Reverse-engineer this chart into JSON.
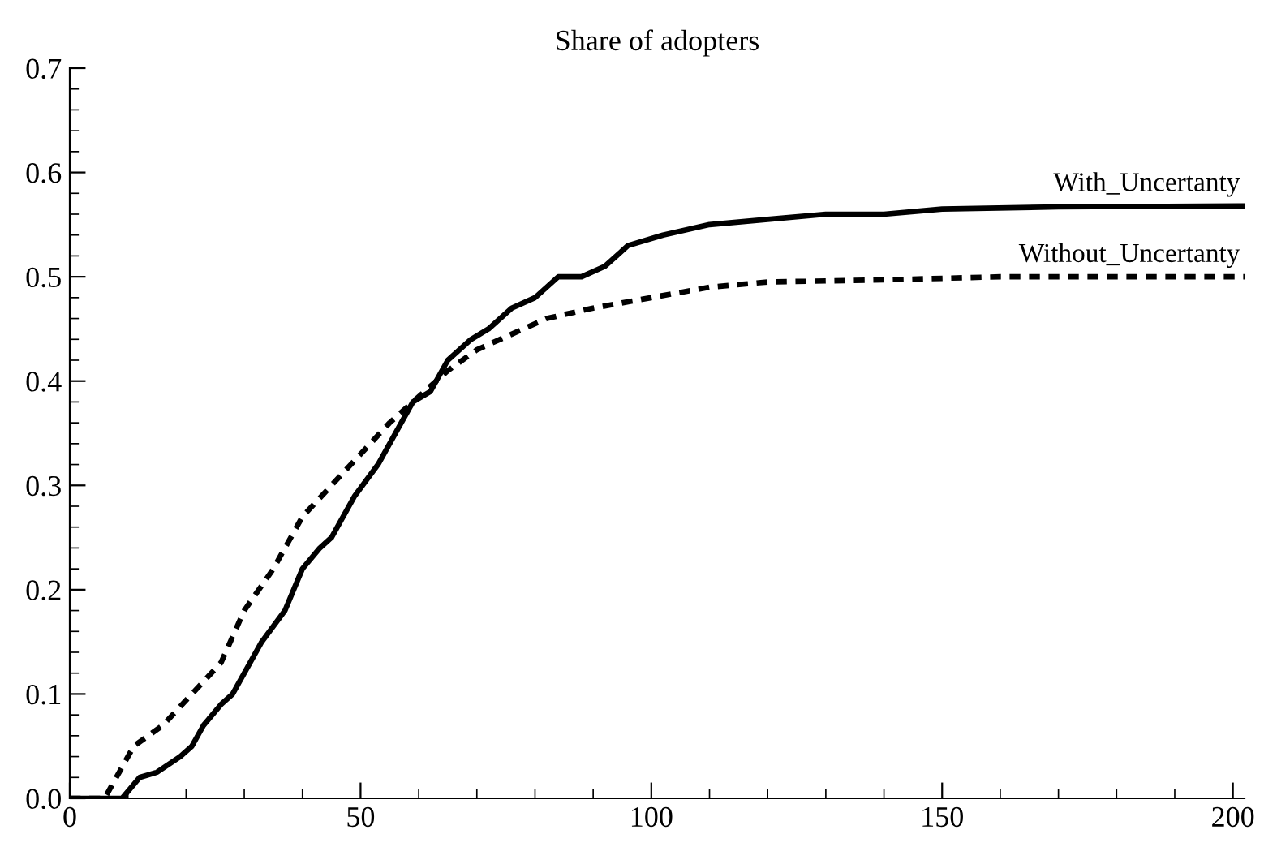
{
  "chart_data": {
    "type": "line",
    "title": "Share of adopters",
    "xlim": [
      0,
      202
    ],
    "ylim": [
      0,
      0.7
    ],
    "xticks": [
      0,
      {
        "value": 10,
        "label": null
      },
      {
        "value": 20,
        "label": null
      },
      {
        "value": 30,
        "label": null
      },
      {
        "value": 40,
        "label": null
      },
      50,
      {
        "value": 60,
        "label": null
      },
      {
        "value": 70,
        "label": null
      },
      {
        "value": 80,
        "label": null
      },
      {
        "value": 90,
        "label": null
      },
      100,
      {
        "value": 110,
        "label": null
      },
      {
        "value": 120,
        "label": null
      },
      {
        "value": 130,
        "label": null
      },
      {
        "value": 140,
        "label": null
      },
      150,
      {
        "value": 160,
        "label": null
      },
      {
        "value": 170,
        "label": null
      },
      {
        "value": 180,
        "label": null
      },
      {
        "value": 190,
        "label": null
      },
      200
    ],
    "yticks": [
      {
        "value": 0,
        "label": "0.0"
      },
      {
        "value": 0.02,
        "label": null
      },
      {
        "value": 0.04,
        "label": null
      },
      {
        "value": 0.06,
        "label": null
      },
      {
        "value": 0.08,
        "label": null
      },
      0.1,
      {
        "value": 0.12,
        "label": null
      },
      {
        "value": 0.14,
        "label": null
      },
      {
        "value": 0.16,
        "label": null
      },
      {
        "value": 0.18,
        "label": null
      },
      0.2,
      {
        "value": 0.22,
        "label": null
      },
      {
        "value": 0.24,
        "label": null
      },
      {
        "value": 0.26,
        "label": null
      },
      {
        "value": 0.28,
        "label": null
      },
      0.3,
      {
        "value": 0.32,
        "label": null
      },
      {
        "value": 0.34,
        "label": null
      },
      {
        "value": 0.36,
        "label": null
      },
      {
        "value": 0.38,
        "label": null
      },
      0.4,
      {
        "value": 0.42,
        "label": null
      },
      {
        "value": 0.44,
        "label": null
      },
      {
        "value": 0.46,
        "label": null
      },
      {
        "value": 0.48,
        "label": null
      },
      0.5,
      {
        "value": 0.52,
        "label": null
      },
      {
        "value": 0.54,
        "label": null
      },
      {
        "value": 0.56,
        "label": null
      },
      {
        "value": 0.58,
        "label": null
      },
      0.6,
      {
        "value": 0.62,
        "label": null
      },
      {
        "value": 0.64,
        "label": null
      },
      {
        "value": 0.66,
        "label": null
      },
      {
        "value": 0.68,
        "label": null
      },
      0.7
    ],
    "grid": false,
    "marker": "none",
    "series": [
      {
        "name": "With_Uncertanty",
        "color": "#000000",
        "line_style": "solid",
        "x": [
          0,
          9,
          12,
          15,
          19,
          21,
          23,
          26,
          28,
          31,
          33,
          37,
          40,
          43,
          45,
          49,
          53,
          57,
          59,
          62,
          65,
          69,
          72,
          76,
          80,
          84,
          88,
          92,
          96,
          102,
          110,
          120,
          130,
          140,
          150,
          170,
          202
        ],
        "values": [
          0,
          0,
          0.02,
          0.025,
          0.04,
          0.05,
          0.07,
          0.09,
          0.1,
          0.13,
          0.15,
          0.18,
          0.22,
          0.24,
          0.25,
          0.29,
          0.32,
          0.36,
          0.38,
          0.39,
          0.42,
          0.44,
          0.45,
          0.47,
          0.48,
          0.5,
          0.5,
          0.51,
          0.53,
          0.54,
          0.55,
          0.555,
          0.56,
          0.56,
          0.565,
          0.567,
          0.568
        ]
      },
      {
        "name": "Without_Uncertanty",
        "color": "#000000",
        "line_style": "dashed",
        "x": [
          0,
          6,
          11,
          16,
          21,
          26,
          30,
          35,
          40,
          45,
          50,
          55,
          59,
          65,
          70,
          76,
          82,
          90,
          100,
          110,
          120,
          140,
          160,
          202
        ],
        "values": [
          0,
          0,
          0.05,
          0.07,
          0.1,
          0.13,
          0.18,
          0.22,
          0.27,
          0.3,
          0.33,
          0.36,
          0.38,
          0.41,
          0.43,
          0.445,
          0.46,
          0.47,
          0.48,
          0.49,
          0.495,
          0.497,
          0.5,
          0.5
        ]
      }
    ]
  }
}
